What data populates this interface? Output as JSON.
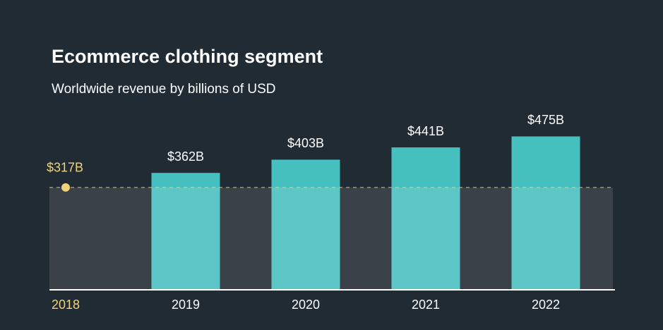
{
  "chart_data": {
    "type": "bar",
    "title": "Ecommerce clothing segment",
    "subtitle": "Worldwide revenue by billions of USD",
    "categories": [
      "2018",
      "2019",
      "2020",
      "2021",
      "2022"
    ],
    "values": [
      317,
      362,
      403,
      441,
      475
    ],
    "value_labels": [
      "$317B",
      "$362B",
      "$403B",
      "$441B",
      "$475B"
    ],
    "color": "#46bfbf",
    "baseline_color": "#f2d27a",
    "ylim": [
      0,
      500
    ]
  }
}
